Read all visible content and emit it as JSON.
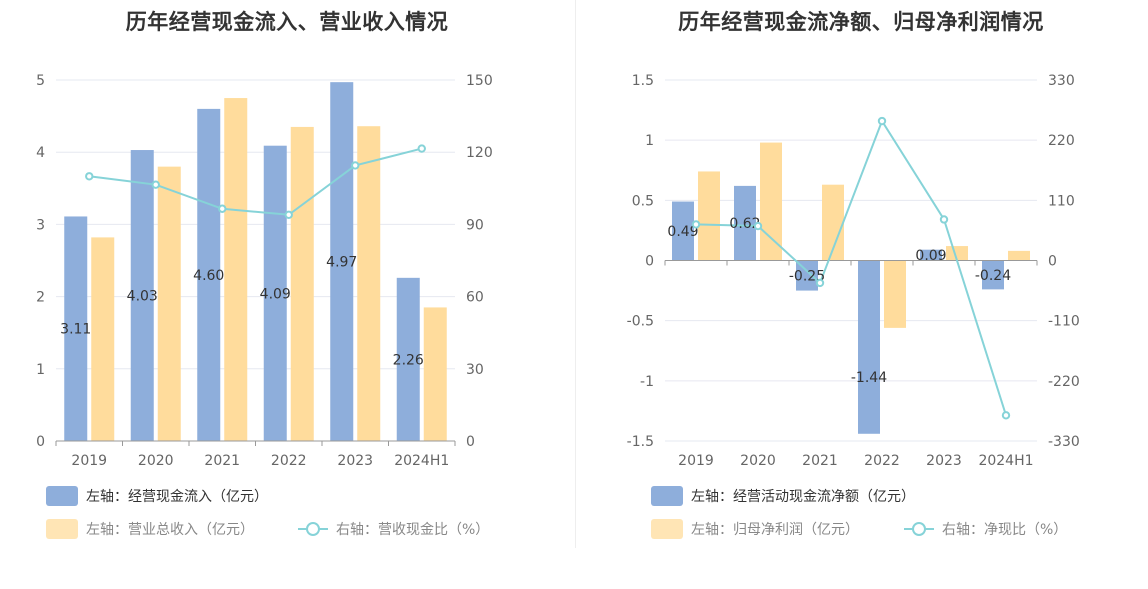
{
  "colors": {
    "bar_primary": "#8eaedb",
    "bar_secondary": "#ffdc9c",
    "line": "#86d3d8",
    "grid": "#e6e8f0",
    "axis": "#999999",
    "text_dark": "#333333",
    "text_muted": "#888888"
  },
  "chart_data": [
    {
      "type": "bar",
      "title": "历年经营现金流入、营业收入情况",
      "categories": [
        "2019",
        "2020",
        "2021",
        "2022",
        "2023",
        "2024H1"
      ],
      "y_left": {
        "ylim": [
          0,
          5
        ],
        "ticks": [
          "0",
          "1",
          "2",
          "3",
          "4",
          "5"
        ]
      },
      "y_right": {
        "ylim": [
          0,
          150
        ],
        "ticks": [
          "0",
          "30",
          "60",
          "90",
          "120",
          "150"
        ]
      },
      "series": [
        {
          "name": "左轴：经营现金流入（亿元）",
          "kind": "bar",
          "axis": "left",
          "values": [
            3.11,
            4.03,
            4.6,
            4.09,
            4.97,
            2.26
          ],
          "labels": [
            "3.11",
            "4.03",
            "4.60",
            "4.09",
            "4.97",
            "2.26"
          ]
        },
        {
          "name": "左轴：营业总收入（亿元）",
          "kind": "bar",
          "axis": "left",
          "values": [
            2.82,
            3.8,
            4.75,
            4.35,
            4.36,
            1.85
          ]
        },
        {
          "name": "右轴：营收现金比（%）",
          "kind": "line",
          "axis": "right",
          "values": [
            110,
            106.5,
            96.5,
            94,
            114.5,
            121.5
          ]
        }
      ]
    },
    {
      "type": "bar",
      "title": "历年经营现金流净额、归母净利润情况",
      "categories": [
        "2019",
        "2020",
        "2021",
        "2022",
        "2023",
        "2024H1"
      ],
      "y_left": {
        "ylim": [
          -1.5,
          1.5
        ],
        "ticks": [
          "1.5",
          "1",
          "0.5",
          "0",
          "-0.5",
          "-1",
          "-1.5"
        ]
      },
      "y_right": {
        "ylim": [
          -330,
          330
        ],
        "ticks": [
          "330",
          "220",
          "110",
          "0",
          "-110",
          "-220",
          "-330"
        ]
      },
      "series": [
        {
          "name": "左轴：经营活动现金流净额（亿元）",
          "kind": "bar",
          "axis": "left",
          "values": [
            0.49,
            0.62,
            -0.25,
            -1.44,
            0.09,
            -0.24
          ],
          "labels": [
            "0.49",
            "0.62",
            "-0.25",
            "-1.44",
            "0.09",
            "-0.24"
          ]
        },
        {
          "name": "左轴：归母净利润（亿元）",
          "kind": "bar",
          "axis": "left",
          "values": [
            0.74,
            0.98,
            0.63,
            -0.56,
            0.12,
            0.08
          ]
        },
        {
          "name": "右轴：净现比（%）",
          "kind": "line",
          "axis": "right",
          "values": [
            66,
            63,
            -41,
            255,
            75,
            -283
          ]
        }
      ]
    }
  ]
}
